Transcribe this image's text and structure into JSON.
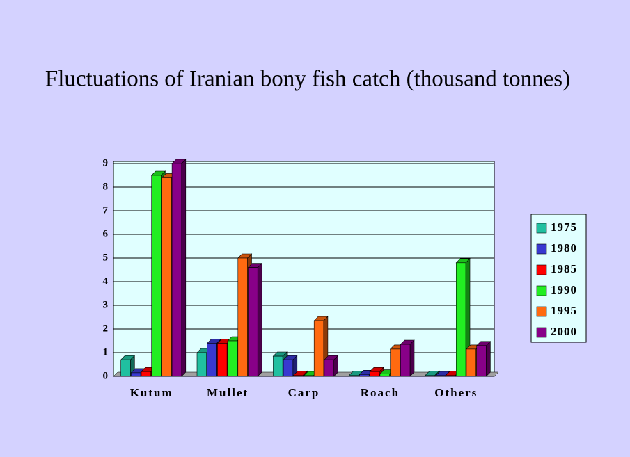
{
  "chart_data": {
    "type": "bar3d",
    "title": "Fluctuations of Iranian bony fish catch (thousand tonnes)",
    "categories": [
      "Kutum",
      "Mullet",
      "Carp",
      "Roach",
      "Others"
    ],
    "series": [
      {
        "name": "1975",
        "color": "#20c0a0",
        "values": [
          0.7,
          1.0,
          0.85,
          0.05,
          0.05
        ]
      },
      {
        "name": "1980",
        "color": "#3838d0",
        "values": [
          0.15,
          1.4,
          0.7,
          0.08,
          0.03
        ]
      },
      {
        "name": "1985",
        "color": "#ff0000",
        "values": [
          0.2,
          1.4,
          0.05,
          0.2,
          0.05
        ]
      },
      {
        "name": "1990",
        "color": "#22ee22",
        "values": [
          8.5,
          1.5,
          0.03,
          0.1,
          4.8
        ]
      },
      {
        "name": "1995",
        "color": "#ff6a10",
        "values": [
          8.4,
          5.0,
          2.35,
          1.15,
          1.15
        ]
      },
      {
        "name": "2000",
        "color": "#880088",
        "values": [
          9.0,
          4.6,
          0.7,
          1.35,
          1.3
        ]
      }
    ],
    "ylim": [
      0,
      9
    ],
    "yticks": [
      0,
      1,
      2,
      3,
      4,
      5,
      6,
      7,
      8,
      9
    ],
    "grid": true
  }
}
